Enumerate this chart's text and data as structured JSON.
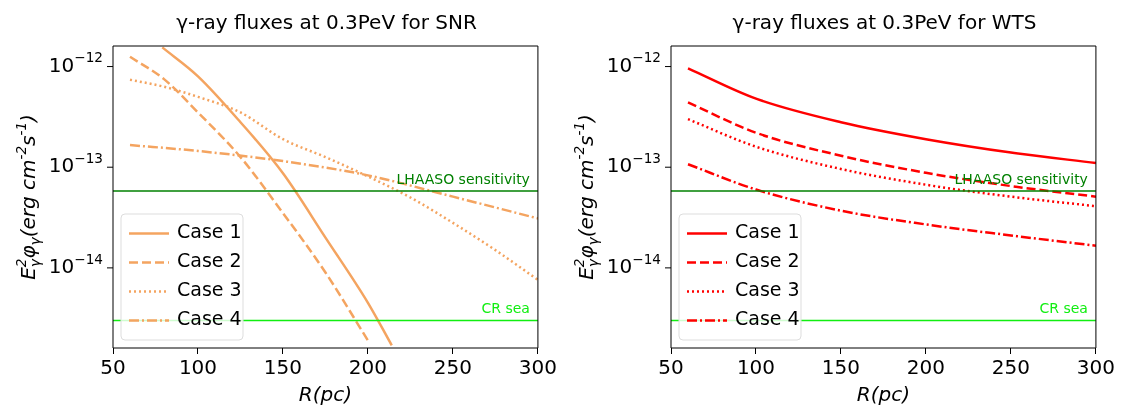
{
  "chart_data": [
    {
      "type": "line",
      "title": "γ-ray fluxes at 0.3PeV for SNR",
      "xlabel": "R(pc)",
      "ylabel": "E$^{2}$$_{γ}$φ$_{γ}$(erg cm$^{-2}$s$^{-1}$)",
      "log": "y",
      "grid": false,
      "legend": "bottom left",
      "xlim": [
        50,
        300
      ],
      "xticks": [
        50,
        100,
        150,
        200,
        250,
        300
      ],
      "ylim": [
        1.6e-15,
        1.6e-12
      ],
      "yticks": [
        {
          "value": 1e-14,
          "label": "10$^{−14}$"
        },
        {
          "value": 1e-13,
          "label": "10$^{−13}$"
        },
        {
          "value": 1e-12,
          "label": "10$^{−12}$"
        }
      ],
      "series": [
        {
          "name": "Case 1",
          "color": "#f4a460",
          "line_style": "solid",
          "x": [
            79,
            100,
            125,
            150,
            175,
            200,
            214
          ],
          "values": [
            1.55e-12,
            8e-13,
            2.8e-13,
            8.7e-14,
            2e-14,
            4.5e-15,
            1.7e-15
          ]
        },
        {
          "name": "Case 2",
          "color": "#f4a460",
          "line_style": "dashed",
          "x": [
            60,
            80,
            100,
            125,
            150,
            175,
            200
          ],
          "values": [
            1.25e-12,
            7.5e-13,
            3.5e-13,
            1.26e-13,
            3.5e-14,
            9e-15,
            1.9e-15
          ]
        },
        {
          "name": "Case 3",
          "color": "#f4a460",
          "line_style": "dotted",
          "x": [
            60,
            80,
            100,
            125,
            150,
            175,
            200,
            225,
            250,
            275,
            300
          ],
          "values": [
            7.4e-13,
            6.3e-13,
            5e-13,
            3.5e-13,
            1.9e-13,
            1.26e-13,
            8.1e-14,
            5e-14,
            2.8e-14,
            1.5e-14,
            7.6e-15
          ]
        },
        {
          "name": "Case 4",
          "color": "#f4a460",
          "line_style": "dashdot",
          "x": [
            60,
            100,
            150,
            200,
            250,
            300
          ],
          "values": [
            1.66e-13,
            1.45e-13,
            1.15e-13,
            8.3e-14,
            5.1e-14,
            3.1e-14
          ]
        }
      ],
      "ref_lines": [
        {
          "axis": "y",
          "value": 5.8e-14,
          "label": "LHAASO sensitivity",
          "color": "#008000"
        },
        {
          "axis": "y",
          "value": 3e-15,
          "label": "CR sea",
          "color": "#11ee11"
        }
      ]
    },
    {
      "type": "line",
      "title": "γ-ray fluxes at 0.3PeV for WTS",
      "xlabel": "R(pc)",
      "ylabel": "E$^{2}$$_{γ}$φ$_{γ}$(erg cm$^{-2}$s$^{-1}$)",
      "log": "y",
      "grid": false,
      "legend": "bottom left",
      "xlim": [
        50,
        300
      ],
      "xticks": [
        50,
        100,
        150,
        200,
        250,
        300
      ],
      "ylim": [
        1.6e-15,
        1.6e-12
      ],
      "yticks": [
        {
          "value": 1e-14,
          "label": "10$^{−14}$"
        },
        {
          "value": 1e-13,
          "label": "10$^{−13}$"
        },
        {
          "value": 1e-12,
          "label": "10$^{−12}$"
        }
      ],
      "series": [
        {
          "name": "Case 1",
          "color": "#ff0000",
          "line_style": "solid",
          "x": [
            60,
            100,
            150,
            200,
            250,
            300
          ],
          "values": [
            9.6e-13,
            4.8e-13,
            2.8e-13,
            1.9e-13,
            1.4e-13,
            1.1e-13
          ]
        },
        {
          "name": "Case 2",
          "color": "#ff0000",
          "line_style": "dashed",
          "x": [
            60,
            100,
            150,
            200,
            250,
            300
          ],
          "values": [
            4.4e-13,
            2.2e-13,
            1.3e-13,
            8.8e-14,
            6.5e-14,
            5.1e-14
          ]
        },
        {
          "name": "Case 3",
          "color": "#ff0000",
          "line_style": "dotted",
          "x": [
            60,
            100,
            150,
            200,
            250,
            300
          ],
          "values": [
            3e-13,
            1.6e-13,
            9.6e-14,
            6.7e-14,
            5.1e-14,
            4.1e-14
          ]
        },
        {
          "name": "Case 4",
          "color": "#ff0000",
          "line_style": "dashdot",
          "x": [
            60,
            100,
            150,
            200,
            250,
            300
          ],
          "values": [
            1.07e-13,
            6e-14,
            3.7e-14,
            2.7e-14,
            2.1e-14,
            1.66e-14
          ]
        }
      ],
      "ref_lines": [
        {
          "axis": "y",
          "value": 5.8e-14,
          "label": "LHAASO sensitivity",
          "color": "#008000"
        },
        {
          "axis": "y",
          "value": 3e-15,
          "label": "CR sea",
          "color": "#11ee11"
        }
      ]
    }
  ]
}
